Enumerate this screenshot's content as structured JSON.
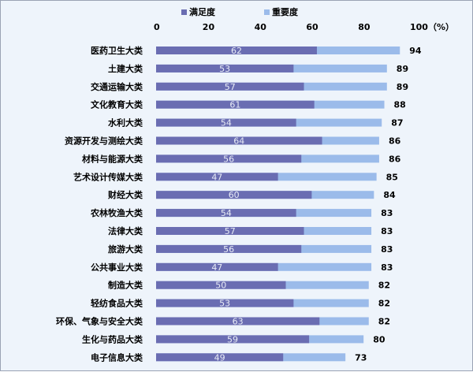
{
  "chart_data": {
    "type": "bar",
    "orientation": "horizontal",
    "overlap": true,
    "categories": [
      "医药卫生大类",
      "土建大类",
      "交通运输大类",
      "文化教育大类",
      "水利大类",
      "资源开发与测绘大类",
      "材料与能源大类",
      "艺术设计传媒大类",
      "财经大类",
      "农林牧渔大类",
      "法律大类",
      "旅游大类",
      "公共事业大类",
      "制造大类",
      "轻纺食品大类",
      "环保、气象与安全大类",
      "生化与药品大类",
      "电子信息大类"
    ],
    "series": [
      {
        "name": "满足度",
        "color": "#6a6db2",
        "values": [
          62,
          53,
          57,
          61,
          54,
          64,
          56,
          47,
          60,
          54,
          57,
          56,
          47,
          50,
          53,
          63,
          59,
          49
        ]
      },
      {
        "name": "重要度",
        "color": "#9bbbea",
        "values": [
          94,
          89,
          89,
          88,
          87,
          86,
          86,
          85,
          84,
          83,
          83,
          83,
          83,
          82,
          82,
          82,
          80,
          73
        ]
      }
    ],
    "x_ticks": [
      "0",
      "20",
      "40",
      "60",
      "80",
      "100（%）"
    ],
    "xlim": [
      0,
      100
    ],
    "grid": false,
    "legend_position": "top-center"
  }
}
